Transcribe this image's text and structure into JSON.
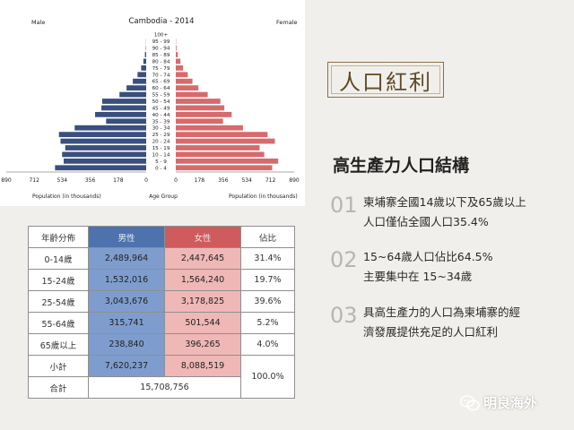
{
  "chart_data": {
    "type": "bar",
    "title": "Cambodia - 2014",
    "left_label": "Male",
    "right_label": "Female",
    "xlabel_left": "Population (in thousands)",
    "xlabel_center": "Age Group",
    "xlabel_right": "Population (in thousands)",
    "x_ticks_left": [
      "890",
      "712",
      "534",
      "356",
      "178",
      "0"
    ],
    "x_ticks_right": [
      "0",
      "178",
      "356",
      "534",
      "712",
      "890"
    ],
    "xlim": [
      0,
      890
    ],
    "categories": [
      "100+",
      "95 - 99",
      "90 - 94",
      "85 - 89",
      "80 - 84",
      "75 - 79",
      "70 - 74",
      "65 - 69",
      "60 - 64",
      "55 - 59",
      "50 - 54",
      "45 - 49",
      "40 - 44",
      "35 - 39",
      "30 - 34",
      "25 - 29",
      "20 - 24",
      "15 - 19",
      "10 - 14",
      "5 - 9",
      "0 - 4"
    ],
    "series": [
      {
        "name": "Male",
        "color": "#3a4f7e",
        "values": [
          0,
          1,
          2,
          8,
          18,
          32,
          55,
          85,
          125,
          170,
          280,
          285,
          325,
          255,
          455,
          555,
          545,
          515,
          535,
          525,
          580
        ]
      },
      {
        "name": "Female",
        "color": "#d66a6c",
        "values": [
          0,
          2,
          5,
          15,
          35,
          55,
          90,
          125,
          170,
          240,
          335,
          365,
          420,
          355,
          505,
          690,
          745,
          630,
          665,
          770,
          725
        ]
      }
    ]
  },
  "table": {
    "headers": [
      "年齡分佈",
      "男性",
      "女性",
      "佔比"
    ],
    "rows": [
      {
        "age": "0-14歲",
        "male": "2,489,964",
        "female": "2,447,645",
        "pct": "31.4%"
      },
      {
        "age": "15-24歲",
        "male": "1,532,016",
        "female": "1,564,240",
        "pct": "19.7%"
      },
      {
        "age": "25-54歲",
        "male": "3,043,676",
        "female": "3,178,825",
        "pct": "39.6%"
      },
      {
        "age": "55-64歲",
        "male": "315,741",
        "female": "501,544",
        "pct": "5.2%"
      },
      {
        "age": "65歲以上",
        "male": "238,840",
        "female": "396,265",
        "pct": "4.0%"
      }
    ],
    "subtotal": {
      "label": "小計",
      "male": "7,620,237",
      "female": "8,088,519"
    },
    "total": {
      "label": "合計",
      "value": "15,708,756",
      "pct": "100.0%"
    }
  },
  "badge": "人口紅利",
  "section_title": "高生產力人口結構",
  "points": [
    {
      "num": "01",
      "text": "柬埔寨全國14歲以下及65歲以上\n人口僅佔全國人口35.4%"
    },
    {
      "num": "02",
      "text": "15~64歲人口佔比64.5%\n主要集中在 15~34歲"
    },
    {
      "num": "03",
      "text": "具高生產力的人口為柬埔寨的經\n濟發展提供充足的人口紅利"
    }
  ],
  "watermark": "明良海外",
  "colors": {
    "male_bar": "#3a4f7e",
    "female_bar": "#d66a6c",
    "male_header": "#4d72ad",
    "female_header": "#cf5b5d",
    "male_cell": "#7e9dce",
    "female_cell": "#f0b7b7"
  }
}
